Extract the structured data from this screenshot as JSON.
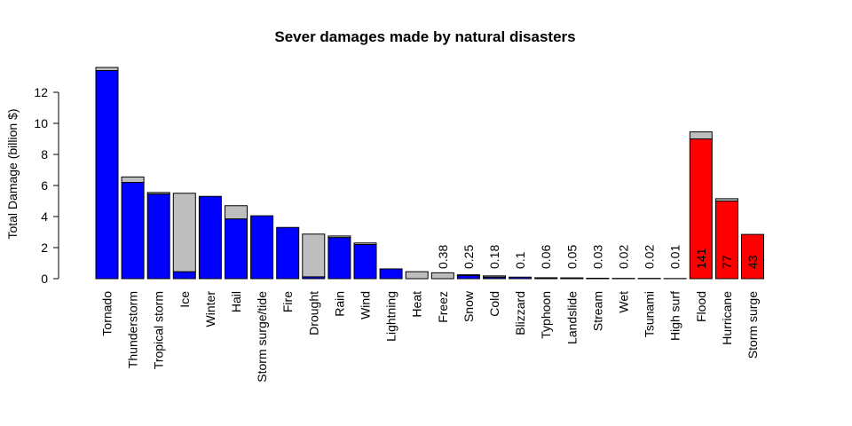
{
  "chart_data": {
    "type": "bar",
    "title": "Sever damages made by natural disasters",
    "xlabel": "",
    "ylabel": "Total Damage (billion $)",
    "ylim": [
      0,
      13.6
    ],
    "yticks": [
      0,
      2,
      4,
      6,
      8,
      10,
      12
    ],
    "grid": false,
    "stacked": true,
    "categories": [
      "Tornado",
      "Thunderstorm",
      "Tropical storm",
      "Ice",
      "Winter",
      "Hail",
      "Storm surge/tide",
      "Fire",
      "Drought",
      "Rain",
      "Wind",
      "Lightning",
      "Heat",
      "Freez",
      "Snow",
      "Cold",
      "Blizzard",
      "Typhoon",
      "Landslide",
      "Stream",
      "Wet",
      "Tsunami",
      "High surf",
      "Flood",
      "Hurricane",
      "Storm surge"
    ],
    "series": [
      {
        "values": [
          13.4,
          6.2,
          5.45,
          0.45,
          5.3,
          3.85,
          4.05,
          3.3,
          0.12,
          2.65,
          2.2,
          0.63,
          0,
          0,
          0.2,
          0.1,
          0.1,
          0.05,
          0.04,
          0.03,
          0,
          0,
          0,
          9.0,
          5.0,
          2.85
        ]
      },
      {
        "values": [
          0.2,
          0.35,
          0.1,
          5.05,
          0,
          0.85,
          0,
          0,
          2.75,
          0.1,
          0.1,
          0,
          0.45,
          0.38,
          0.05,
          0.08,
          0,
          0.01,
          0.01,
          0,
          0.02,
          0.02,
          0.01,
          0.45,
          0.15,
          0
        ]
      }
    ],
    "bar_colors": [
      "#0000ff",
      "#0000ff",
      "#0000ff",
      "#0000ff",
      "#0000ff",
      "#0000ff",
      "#0000ff",
      "#0000ff",
      "#0000ff",
      "#0000ff",
      "#0000ff",
      "#0000ff",
      "#0000ff",
      "#0000ff",
      "#0000ff",
      "#0000ff",
      "#0000ff",
      "#0000ff",
      "#0000ff",
      "#0000ff",
      "#0000ff",
      "#0000ff",
      "#0000ff",
      "#ff0000",
      "#ff0000",
      "#ff0000"
    ],
    "top_segment_color": "#bebebe",
    "data_labels": [
      {
        "category": "Freez",
        "text": "0.38"
      },
      {
        "category": "Snow",
        "text": "0.25"
      },
      {
        "category": "Cold",
        "text": "0.18"
      },
      {
        "category": "Blizzard",
        "text": "0.1"
      },
      {
        "category": "Typhoon",
        "text": "0.06"
      },
      {
        "category": "Landslide",
        "text": "0.05"
      },
      {
        "category": "Stream",
        "text": "0.03"
      },
      {
        "category": "Wet",
        "text": "0.02"
      },
      {
        "category": "Tsunami",
        "text": "0.02"
      },
      {
        "category": "High surf",
        "text": "0.01"
      },
      {
        "category": "Flood",
        "text": "141"
      },
      {
        "category": "Hurricane",
        "text": "77"
      },
      {
        "category": "Storm surge",
        "text": "43"
      }
    ]
  }
}
